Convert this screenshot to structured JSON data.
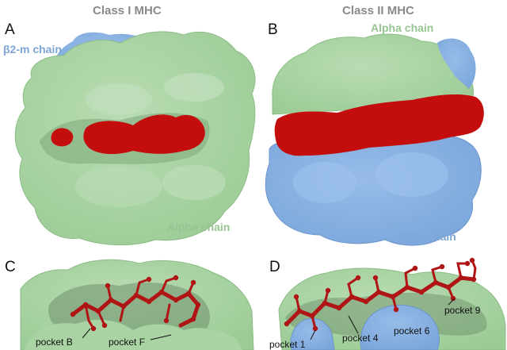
{
  "columns": {
    "left_title": "Class I MHC",
    "right_title": "Class II MHC"
  },
  "panels": {
    "a": "A",
    "b": "B",
    "c": "C",
    "d": "D"
  },
  "chains": {
    "b2m": "β2-m chain",
    "class1_alpha": "Alpha chain",
    "class2_alpha": "Alpha chain",
    "class2_beta": "Beta chain"
  },
  "pockets": {
    "b": "pocket B",
    "f": "pocket F",
    "p1": "pocket 1",
    "p4": "pocket 4",
    "p6": "pocket 6",
    "p9": "pocket 9"
  },
  "colors": {
    "alpha_green": "#a8d3a2",
    "beta_blue": "#86afe0",
    "peptide_red": "#c40d0d",
    "stick_red": "#b01515"
  }
}
